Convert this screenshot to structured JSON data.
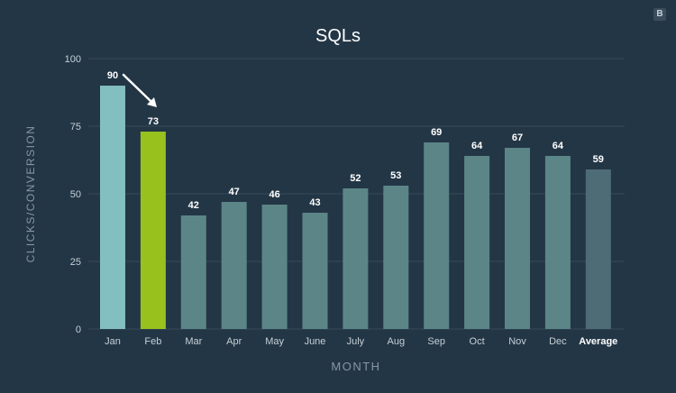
{
  "brand_badge": "B",
  "chart_data": {
    "type": "bar",
    "title": "SQLs",
    "xlabel": "MONTH",
    "ylabel": "CLICKS/CONVERSION",
    "ylim": [
      0,
      100
    ],
    "yticks": [
      0,
      25,
      50,
      75,
      100
    ],
    "categories": [
      "Jan",
      "Feb",
      "Mar",
      "Apr",
      "May",
      "June",
      "July",
      "Aug",
      "Sep",
      "Oct",
      "Nov",
      "Dec",
      "Average"
    ],
    "values": [
      90,
      73,
      42,
      47,
      46,
      43,
      52,
      53,
      69,
      64,
      67,
      64,
      59
    ],
    "grid": true,
    "annotation": "arrow from Jan to Feb",
    "colors": {
      "background": "#233646",
      "grid": "#34495a",
      "jan": "#83bfbf",
      "feb": "#98c11e",
      "default": "#5c8587",
      "average": "#4e6c76",
      "text": "#ffffff",
      "axis_text": "#c6d0d6",
      "axis_title": "#8797a3"
    }
  }
}
